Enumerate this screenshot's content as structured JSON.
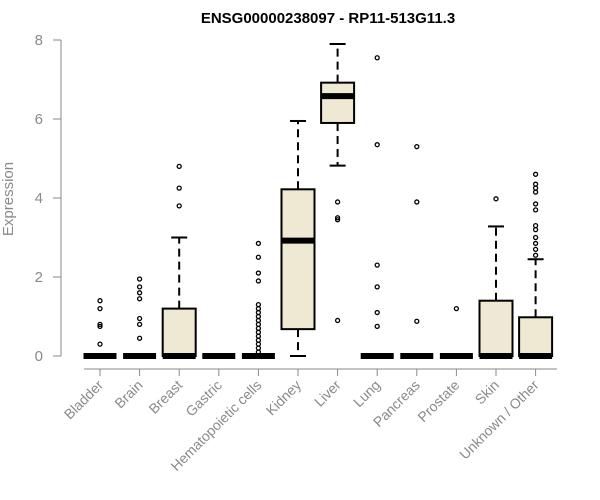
{
  "chart_data": {
    "type": "box",
    "title": "ENSG00000238097 - RP11-513G11.3",
    "ylabel": "Expression",
    "ylim": [
      0,
      8
    ],
    "yticks": [
      0,
      2,
      4,
      6,
      8
    ],
    "grid": false,
    "colors": {
      "box_fill": "#efe8d2",
      "stroke": "#000000",
      "axis": "#8a8a8a"
    },
    "categories": [
      "Bladder",
      "Brain",
      "Breast",
      "Gastric",
      "Hematopoietic cells",
      "Kidney",
      "Liver",
      "Lung",
      "Pancreas",
      "Prostate",
      "Skin",
      "Unknown / Other"
    ],
    "boxes": [
      {
        "q1": 0,
        "median": 0,
        "q3": 0,
        "whisker_low": 0,
        "whisker_high": 0,
        "outliers": [
          0.3,
          0.75,
          0.8,
          1.2,
          1.4
        ]
      },
      {
        "q1": 0,
        "median": 0,
        "q3": 0,
        "whisker_low": 0,
        "whisker_high": 0,
        "outliers": [
          0.45,
          0.8,
          0.95,
          1.45,
          1.6,
          1.75,
          1.95
        ]
      },
      {
        "q1": 0,
        "median": 0,
        "q3": 1.2,
        "whisker_low": 0,
        "whisker_high": 3.0,
        "outliers": [
          3.8,
          4.25,
          4.8
        ]
      },
      {
        "q1": 0,
        "median": 0,
        "q3": 0,
        "whisker_low": 0,
        "whisker_high": 0,
        "outliers": []
      },
      {
        "q1": 0,
        "median": 0,
        "q3": 0,
        "whisker_low": 0,
        "whisker_high": 0,
        "outliers": [
          0.1,
          0.2,
          0.3,
          0.4,
          0.5,
          0.6,
          0.7,
          0.8,
          0.9,
          1.0,
          1.1,
          1.2,
          1.3,
          1.9,
          2.1,
          2.5,
          2.85
        ]
      },
      {
        "q1": 0.68,
        "median": 2.92,
        "q3": 4.22,
        "whisker_low": 0,
        "whisker_high": 5.95,
        "outliers": []
      },
      {
        "q1": 5.9,
        "median": 6.58,
        "q3": 6.92,
        "whisker_low": 4.82,
        "whisker_high": 7.9,
        "outliers": [
          0.9,
          3.45,
          3.5,
          3.9
        ]
      },
      {
        "q1": 0,
        "median": 0,
        "q3": 0,
        "whisker_low": 0,
        "whisker_high": 0,
        "outliers": [
          0.75,
          1.1,
          1.75,
          2.3,
          5.35,
          7.55
        ]
      },
      {
        "q1": 0,
        "median": 0,
        "q3": 0,
        "whisker_low": 0,
        "whisker_high": 0,
        "outliers": [
          0.88,
          3.9,
          5.3
        ]
      },
      {
        "q1": 0,
        "median": 0,
        "q3": 0,
        "whisker_low": 0,
        "whisker_high": 0,
        "outliers": [
          1.2
        ]
      },
      {
        "q1": 0,
        "median": 0,
        "q3": 1.4,
        "whisker_low": 0,
        "whisker_high": 3.28,
        "outliers": [
          3.98
        ]
      },
      {
        "q1": 0,
        "median": 0,
        "q3": 0.98,
        "whisker_low": 0,
        "whisker_high": 2.45,
        "outliers": [
          2.55,
          2.7,
          2.85,
          3.0,
          3.2,
          3.3,
          3.7,
          3.85,
          4.15,
          4.25,
          4.35,
          4.6
        ]
      }
    ]
  }
}
